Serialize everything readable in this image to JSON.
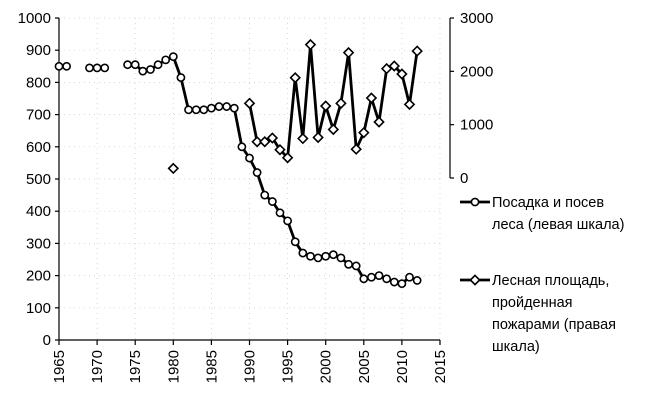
{
  "chart_data": {
    "type": "line",
    "title": "",
    "xlabel": "",
    "ylabel_left": "",
    "ylabel_right": "",
    "xlim": [
      1965,
      2015
    ],
    "ylim_left": [
      0,
      1000
    ],
    "ylim_right": [
      0,
      3000
    ],
    "x_ticks": [
      "1965",
      "1970",
      "1975",
      "1980",
      "1985",
      "1990",
      "1995",
      "2000",
      "2005",
      "2010",
      "2015"
    ],
    "y_ticks_left": [
      "0",
      "100",
      "200",
      "300",
      "400",
      "500",
      "600",
      "700",
      "800",
      "900",
      "1000"
    ],
    "y_ticks_right": [
      "0",
      "1000",
      "2000",
      "3000"
    ],
    "grid": false,
    "legend_position": "right",
    "series": [
      {
        "name": "Посадка и посев леса (левая шкала)",
        "legend_lines": [
          "Посадка и посев",
          "леса (левая шкала)"
        ],
        "axis": "left",
        "marker": "circle",
        "segments": [
          [
            [
              1965,
              850
            ],
            [
              1966,
              850
            ]
          ],
          [
            [
              1969,
              845
            ],
            [
              1970,
              845
            ],
            [
              1971,
              845
            ]
          ],
          [
            [
              1974,
              855
            ],
            [
              1975,
              855
            ],
            [
              1976,
              835
            ],
            [
              1977,
              840
            ],
            [
              1978,
              855
            ],
            [
              1979,
              870
            ],
            [
              1980,
              880
            ],
            [
              1981,
              815
            ],
            [
              1982,
              715
            ],
            [
              1983,
              715
            ],
            [
              1984,
              715
            ],
            [
              1985,
              720
            ],
            [
              1986,
              725
            ],
            [
              1987,
              725
            ],
            [
              1988,
              720
            ],
            [
              1989,
              600
            ],
            [
              1990,
              565
            ],
            [
              1991,
              520
            ],
            [
              1992,
              450
            ],
            [
              1993,
              430
            ],
            [
              1994,
              395
            ],
            [
              1995,
              370
            ],
            [
              1996,
              305
            ],
            [
              1997,
              270
            ],
            [
              1998,
              260
            ],
            [
              1999,
              255
            ],
            [
              2000,
              260
            ],
            [
              2001,
              265
            ],
            [
              2002,
              255
            ],
            [
              2003,
              235
            ],
            [
              2004,
              230
            ],
            [
              2005,
              190
            ],
            [
              2006,
              195
            ],
            [
              2007,
              200
            ],
            [
              2008,
              190
            ],
            [
              2009,
              180
            ],
            [
              2010,
              175
            ],
            [
              2011,
              195
            ],
            [
              2012,
              185
            ]
          ]
        ]
      },
      {
        "name": "Лесная площадь, пройденная пожарами (правая шкала)",
        "legend_lines": [
          "Лесная площадь,",
          "пройденная",
          "пожарами (правая",
          "шкала)"
        ],
        "axis": "right",
        "marker": "diamond",
        "segments": [
          [
            [
              1980,
              180
            ]
          ],
          [
            [
              1990,
              1400
            ],
            [
              1991,
              680
            ],
            [
              1992,
              680
            ],
            [
              1993,
              750
            ],
            [
              1994,
              530
            ],
            [
              1995,
              380
            ],
            [
              1996,
              1880
            ],
            [
              1997,
              740
            ],
            [
              1998,
              2500
            ],
            [
              1999,
              760
            ],
            [
              2000,
              1350
            ],
            [
              2001,
              910
            ],
            [
              2002,
              1400
            ],
            [
              2003,
              2350
            ],
            [
              2004,
              540
            ],
            [
              2005,
              850
            ],
            [
              2006,
              1500
            ],
            [
              2007,
              1050
            ],
            [
              2008,
              2050
            ],
            [
              2009,
              2100
            ],
            [
              2010,
              1950
            ],
            [
              2011,
              1380
            ],
            [
              2012,
              2380
            ]
          ]
        ]
      }
    ]
  }
}
